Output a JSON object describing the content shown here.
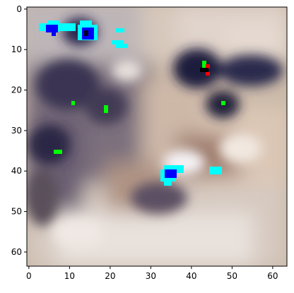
{
  "image": {
    "kind": "pixel-heatmap",
    "grid_size": [
      64,
      64
    ],
    "description_colors": {
      "background": "#ffffff",
      "axis": "#000000",
      "cyan_marks": "#00ffff",
      "blue_marks": "#0000ff",
      "green_marks": "#00ff00",
      "red_marks": "#ff0000",
      "dark_blobs": "#1a1530"
    }
  },
  "axes": {
    "x_ticks": [
      "0",
      "10",
      "20",
      "30",
      "40",
      "50",
      "60"
    ],
    "y_ticks": [
      "0",
      "10",
      "20",
      "30",
      "40",
      "50",
      "60"
    ]
  }
}
